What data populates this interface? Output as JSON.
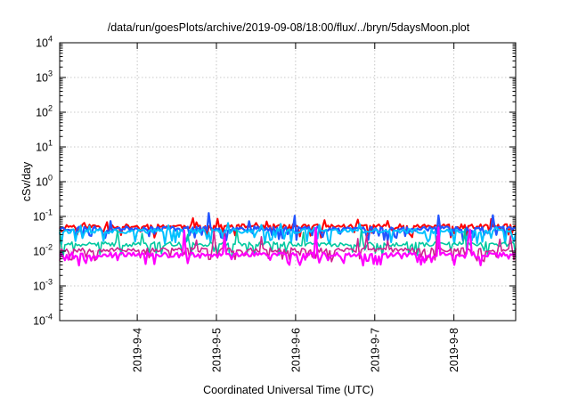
{
  "chart_data": {
    "type": "line",
    "title": "/data/run/goesPlots/archive/2019-09-08/18:00/flux/../bryn/5daysMoon.plot",
    "xlabel": "Coordinated Universal Time (UTC)",
    "ylabel": "cSv/day",
    "y_scale": "log",
    "ylim": [
      0.0001,
      10000
    ],
    "y_tick_exponents": [
      -4,
      -3,
      -2,
      -1,
      0,
      1,
      2,
      3,
      4
    ],
    "y_tick_base": "10",
    "x_ticks": [
      "2019-9-4",
      "2019-9-5",
      "2019-9-6",
      "2019-9-7",
      "2019-9-8"
    ],
    "x_tick_days": [
      4,
      5,
      6,
      7,
      8
    ],
    "xlim_days": [
      3.02,
      8.78
    ],
    "grid": true,
    "legend": "none",
    "series": [
      {
        "color": "#ff0000",
        "base": 0.052,
        "spike": 0.03,
        "dip": 0.035,
        "seed": 11,
        "width": 2.0
      },
      {
        "color": "#2255ff",
        "base": 0.045,
        "spike": 0.06,
        "dip": 0.028,
        "seed": 23,
        "width": 2.2
      },
      {
        "color": "#00c0ff",
        "base": 0.038,
        "spike": 0.02,
        "dip": 0.022,
        "seed": 37,
        "width": 2.0
      },
      {
        "color": "#00c8a0",
        "base": 0.016,
        "spike": 0.02,
        "dip": 0.009,
        "seed": 41,
        "width": 1.6
      },
      {
        "color": "#d02090",
        "base": 0.011,
        "spike": 0.02,
        "dip": 0.007,
        "seed": 53,
        "width": 1.6
      },
      {
        "color": "#ff00ff",
        "base": 0.008,
        "spike": 0.03,
        "dip": 0.0055,
        "seed": 67,
        "width": 2.2
      }
    ]
  }
}
